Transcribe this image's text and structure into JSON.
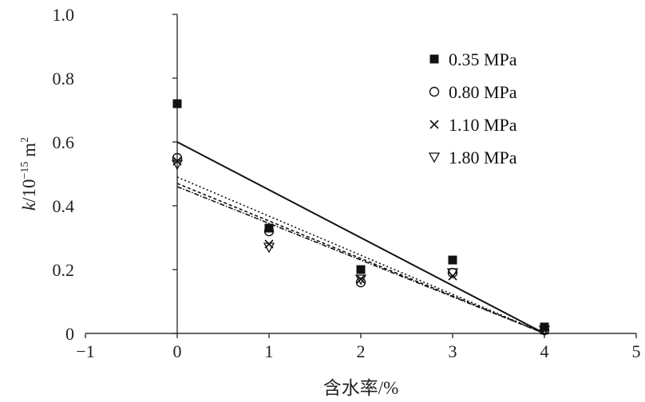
{
  "chart_data": {
    "type": "scatter",
    "xlabel": "含水率/%",
    "ylabel_prefix": "k",
    "ylabel_unit": "/10",
    "ylabel_exp": "−15",
    "ylabel_m": " m",
    "ylabel_m_exp": "2",
    "xlim": [
      -1,
      5
    ],
    "ylim": [
      0,
      1.0
    ],
    "x_ticks": [
      -1,
      0,
      1,
      2,
      3,
      4,
      5
    ],
    "x_tick_labels": [
      "−1",
      "0",
      "1",
      "2",
      "3",
      "4",
      "5"
    ],
    "y_ticks": [
      0,
      0.2,
      0.4,
      0.6,
      0.8,
      1.0
    ],
    "y_tick_labels": [
      "0",
      "0.2",
      "0.4",
      "0.6",
      "0.8",
      "1.0"
    ],
    "grid": false,
    "legend_position": "top-right",
    "series": [
      {
        "name": "0.35 MPa",
        "marker": "filled-square",
        "x": [
          0,
          1,
          2,
          3,
          4
        ],
        "y": [
          0.72,
          0.33,
          0.2,
          0.23,
          0.02
        ],
        "trendline": {
          "x": [
            0,
            4
          ],
          "y": [
            0.6,
            0.0
          ],
          "style": "solid"
        }
      },
      {
        "name": "0.80 MPa",
        "marker": "open-circle",
        "x": [
          0,
          1,
          2,
          3,
          4
        ],
        "y": [
          0.55,
          0.32,
          0.16,
          0.19,
          0.01
        ],
        "trendline": {
          "x": [
            0,
            4
          ],
          "y": [
            0.49,
            0.0
          ],
          "style": "dotted"
        }
      },
      {
        "name": "1.10 MPa",
        "marker": "cross",
        "x": [
          0,
          1,
          2,
          3,
          4
        ],
        "y": [
          0.54,
          0.28,
          0.17,
          0.18,
          0.01
        ],
        "trendline": {
          "x": [
            0,
            4
          ],
          "y": [
            0.47,
            0.0
          ],
          "style": "dashed"
        }
      },
      {
        "name": "1.80 MPa",
        "marker": "down-triangle",
        "x": [
          0,
          1,
          2,
          3,
          4
        ],
        "y": [
          0.53,
          0.27,
          0.17,
          0.19,
          0.01
        ],
        "trendline": {
          "x": [
            0,
            4
          ],
          "y": [
            0.46,
            0.0
          ],
          "style": "dashdot"
        }
      }
    ]
  }
}
